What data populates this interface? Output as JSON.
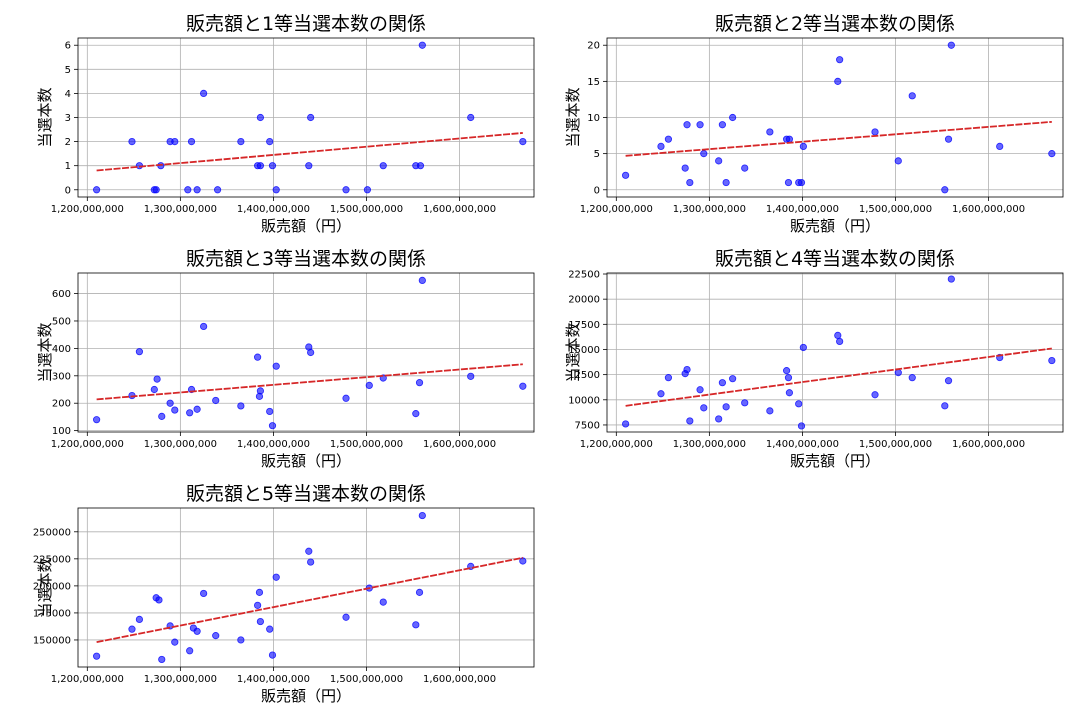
{
  "colors": {
    "point": "#0000ff",
    "trend": "#d62728",
    "grid": "#b0b0b0"
  },
  "chart_data": [
    {
      "type": "scatter",
      "title": "販売額と1等当選本数の関係",
      "xlabel": "販売額（円）",
      "ylabel": "当選本数",
      "xlim": [
        1190000000,
        1680000000
      ],
      "ylim": [
        -0.3,
        6.3
      ],
      "xticks": [
        1200000000,
        1300000000,
        1400000000,
        1500000000,
        1600000000
      ],
      "xtick_labels": [
        "1,200,000,000",
        "1,300,000,000",
        "1,400,000,000",
        "1,500,000,000",
        "1,600,000,000"
      ],
      "yticks": [
        0,
        1,
        2,
        3,
        4,
        5,
        6
      ],
      "ytick_labels": [
        "0",
        "1",
        "2",
        "3",
        "4",
        "5",
        "6"
      ],
      "trend": [
        [
          1210000000,
          0.8
        ],
        [
          1668000000,
          2.36
        ]
      ],
      "points": [
        [
          1210000000,
          0
        ],
        [
          1248000000,
          2
        ],
        [
          1256000000,
          1
        ],
        [
          1272000000,
          0
        ],
        [
          1274000000,
          0
        ],
        [
          1279000000,
          1
        ],
        [
          1289000000,
          2
        ],
        [
          1294000000,
          2
        ],
        [
          1308000000,
          0
        ],
        [
          1312000000,
          2
        ],
        [
          1318000000,
          0
        ],
        [
          1325000000,
          4
        ],
        [
          1340000000,
          0
        ],
        [
          1365000000,
          2
        ],
        [
          1383000000,
          1
        ],
        [
          1386000000,
          1
        ],
        [
          1386000000,
          3
        ],
        [
          1396000000,
          2
        ],
        [
          1399000000,
          1
        ],
        [
          1403000000,
          0
        ],
        [
          1438000000,
          1
        ],
        [
          1440000000,
          3
        ],
        [
          1478000000,
          0
        ],
        [
          1501000000,
          0
        ],
        [
          1518000000,
          1
        ],
        [
          1553000000,
          1
        ],
        [
          1558000000,
          1
        ],
        [
          1560000000,
          6
        ],
        [
          1612000000,
          3
        ],
        [
          1668000000,
          2
        ]
      ]
    },
    {
      "type": "scatter",
      "title": "販売額と2等当選本数の関係",
      "xlabel": "販売額（円）",
      "ylabel": "当選本数",
      "xlim": [
        1190000000,
        1680000000
      ],
      "ylim": [
        -1,
        21
      ],
      "xticks": [
        1200000000,
        1300000000,
        1400000000,
        1500000000,
        1600000000
      ],
      "xtick_labels": [
        "1,200,000,000",
        "1,300,000,000",
        "1,400,000,000",
        "1,500,000,000",
        "1,600,000,000"
      ],
      "yticks": [
        0,
        5,
        10,
        15,
        20
      ],
      "ytick_labels": [
        "0",
        "5",
        "10",
        "15",
        "20"
      ],
      "trend": [
        [
          1210000000,
          4.7
        ],
        [
          1668000000,
          9.4
        ]
      ],
      "points": [
        [
          1210000000,
          2
        ],
        [
          1248000000,
          6
        ],
        [
          1256000000,
          7
        ],
        [
          1274000000,
          3
        ],
        [
          1276000000,
          9
        ],
        [
          1279000000,
          1
        ],
        [
          1290000000,
          9
        ],
        [
          1294000000,
          5
        ],
        [
          1310000000,
          4
        ],
        [
          1314000000,
          9
        ],
        [
          1318000000,
          1
        ],
        [
          1325000000,
          10
        ],
        [
          1338000000,
          3
        ],
        [
          1365000000,
          8
        ],
        [
          1383000000,
          7
        ],
        [
          1385000000,
          1
        ],
        [
          1386000000,
          7
        ],
        [
          1396000000,
          1
        ],
        [
          1399000000,
          1
        ],
        [
          1401000000,
          6
        ],
        [
          1438000000,
          15
        ],
        [
          1440000000,
          18
        ],
        [
          1478000000,
          8
        ],
        [
          1503000000,
          4
        ],
        [
          1518000000,
          13
        ],
        [
          1553000000,
          0
        ],
        [
          1557000000,
          7
        ],
        [
          1560000000,
          20
        ],
        [
          1612000000,
          6
        ],
        [
          1668000000,
          5
        ]
      ]
    },
    {
      "type": "scatter",
      "title": "販売額と3等当選本数の関係",
      "xlabel": "販売額（円）",
      "ylabel": "当選本数",
      "xlim": [
        1190000000,
        1680000000
      ],
      "ylim": [
        95,
        675
      ],
      "xticks": [
        1200000000,
        1300000000,
        1400000000,
        1500000000,
        1600000000
      ],
      "xtick_labels": [
        "1,200,000,000",
        "1,300,000,000",
        "1,400,000,000",
        "1,500,000,000",
        "1,600,000,000"
      ],
      "yticks": [
        100,
        200,
        300,
        400,
        500,
        600
      ],
      "ytick_labels": [
        "100",
        "200",
        "300",
        "400",
        "500",
        "600"
      ],
      "trend": [
        [
          1210000000,
          214
        ],
        [
          1668000000,
          342
        ]
      ],
      "points": [
        [
          1210000000,
          140
        ],
        [
          1248000000,
          228
        ],
        [
          1256000000,
          388
        ],
        [
          1272000000,
          250
        ],
        [
          1275000000,
          288
        ],
        [
          1280000000,
          152
        ],
        [
          1289000000,
          200
        ],
        [
          1294000000,
          175
        ],
        [
          1310000000,
          165
        ],
        [
          1312000000,
          250
        ],
        [
          1318000000,
          178
        ],
        [
          1325000000,
          480
        ],
        [
          1338000000,
          210
        ],
        [
          1365000000,
          190
        ],
        [
          1383000000,
          368
        ],
        [
          1385000000,
          225
        ],
        [
          1386000000,
          245
        ],
        [
          1396000000,
          170
        ],
        [
          1399000000,
          118
        ],
        [
          1403000000,
          335
        ],
        [
          1438000000,
          405
        ],
        [
          1440000000,
          385
        ],
        [
          1478000000,
          218
        ],
        [
          1503000000,
          265
        ],
        [
          1518000000,
          292
        ],
        [
          1553000000,
          162
        ],
        [
          1557000000,
          275
        ],
        [
          1560000000,
          648
        ],
        [
          1612000000,
          298
        ],
        [
          1668000000,
          262
        ]
      ]
    },
    {
      "type": "scatter",
      "title": "販売額と4等当選本数の関係",
      "xlabel": "販売額（円）",
      "ylabel": "当選本数",
      "xlim": [
        1190000000,
        1680000000
      ],
      "ylim": [
        6800,
        22600
      ],
      "xticks": [
        1200000000,
        1300000000,
        1400000000,
        1500000000,
        1600000000
      ],
      "xtick_labels": [
        "1,200,000,000",
        "1,300,000,000",
        "1,400,000,000",
        "1,500,000,000",
        "1,600,000,000"
      ],
      "yticks": [
        7500,
        10000,
        12500,
        15000,
        17500,
        20000,
        22500
      ],
      "ytick_labels": [
        "7500",
        "10000",
        "12500",
        "15000",
        "17500",
        "20000",
        "22500"
      ],
      "trend": [
        [
          1210000000,
          9400
        ],
        [
          1668000000,
          15100
        ]
      ],
      "points": [
        [
          1210000000,
          7600
        ],
        [
          1248000000,
          10600
        ],
        [
          1256000000,
          12200
        ],
        [
          1274000000,
          12600
        ],
        [
          1276000000,
          13000
        ],
        [
          1279000000,
          7900
        ],
        [
          1290000000,
          11000
        ],
        [
          1294000000,
          9200
        ],
        [
          1310000000,
          8100
        ],
        [
          1314000000,
          11700
        ],
        [
          1318000000,
          9300
        ],
        [
          1325000000,
          12100
        ],
        [
          1338000000,
          9700
        ],
        [
          1365000000,
          8900
        ],
        [
          1383000000,
          12900
        ],
        [
          1385000000,
          12200
        ],
        [
          1386000000,
          10700
        ],
        [
          1396000000,
          9600
        ],
        [
          1399000000,
          7400
        ],
        [
          1401000000,
          15200
        ],
        [
          1438000000,
          16400
        ],
        [
          1440000000,
          15800
        ],
        [
          1478000000,
          10500
        ],
        [
          1503000000,
          12700
        ],
        [
          1518000000,
          12200
        ],
        [
          1553000000,
          9400
        ],
        [
          1557000000,
          11900
        ],
        [
          1560000000,
          22000
        ],
        [
          1612000000,
          14200
        ],
        [
          1668000000,
          13900
        ]
      ]
    },
    {
      "type": "scatter",
      "title": "販売額と5等当選本数の関係",
      "xlabel": "販売額（円）",
      "ylabel": "当選本数",
      "xlim": [
        1190000000,
        1680000000
      ],
      "ylim": [
        125000,
        272000
      ],
      "xticks": [
        1200000000,
        1300000000,
        1400000000,
        1500000000,
        1600000000
      ],
      "xtick_labels": [
        "1,200,000,000",
        "1,300,000,000",
        "1,400,000,000",
        "1,500,000,000",
        "1,600,000,000"
      ],
      "yticks": [
        150000,
        175000,
        200000,
        225000,
        250000
      ],
      "ytick_labels": [
        "150000",
        "175000",
        "200000",
        "225000",
        "250000"
      ],
      "trend": [
        [
          1210000000,
          148000
        ],
        [
          1668000000,
          226000
        ]
      ],
      "points": [
        [
          1210000000,
          135000
        ],
        [
          1248000000,
          160000
        ],
        [
          1256000000,
          169000
        ],
        [
          1274000000,
          189000
        ],
        [
          1277000000,
          187000
        ],
        [
          1280000000,
          132000
        ],
        [
          1289000000,
          163000
        ],
        [
          1294000000,
          148000
        ],
        [
          1310000000,
          140000
        ],
        [
          1314000000,
          161000
        ],
        [
          1318000000,
          158000
        ],
        [
          1325000000,
          193000
        ],
        [
          1338000000,
          154000
        ],
        [
          1365000000,
          150000
        ],
        [
          1383000000,
          182000
        ],
        [
          1385000000,
          194000
        ],
        [
          1386000000,
          167000
        ],
        [
          1396000000,
          160000
        ],
        [
          1399000000,
          136000
        ],
        [
          1403000000,
          208000
        ],
        [
          1438000000,
          232000
        ],
        [
          1440000000,
          222000
        ],
        [
          1478000000,
          171000
        ],
        [
          1503000000,
          198000
        ],
        [
          1518000000,
          185000
        ],
        [
          1553000000,
          164000
        ],
        [
          1557000000,
          194000
        ],
        [
          1560000000,
          265000
        ],
        [
          1612000000,
          218000
        ],
        [
          1668000000,
          223000
        ]
      ]
    }
  ]
}
